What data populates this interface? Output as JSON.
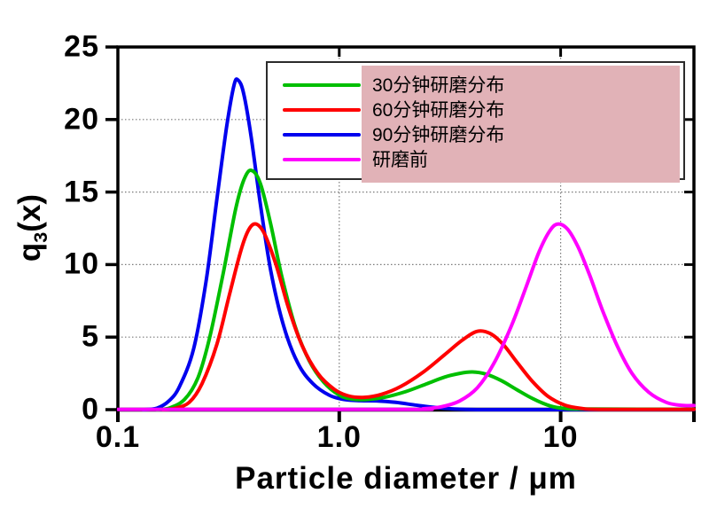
{
  "chart_data": {
    "type": "line",
    "title": "",
    "xlabel": "Particle diameter / μm",
    "ylabel": "q3(x)",
    "ylabel_parts": {
      "main": "q",
      "sub": "3",
      "rest": "(x)"
    },
    "x_scale": "log",
    "xlim": [
      0.1,
      40
    ],
    "ylim": [
      0,
      25
    ],
    "x_ticks": [
      {
        "v": 0.1,
        "label": "0.1"
      },
      {
        "v": 1.0,
        "label": "1.0"
      },
      {
        "v": 10,
        "label": "10"
      }
    ],
    "y_ticks": [
      {
        "v": 0,
        "label": "0"
      },
      {
        "v": 5,
        "label": "5"
      },
      {
        "v": 10,
        "label": "10"
      },
      {
        "v": 15,
        "label": "15"
      },
      {
        "v": 20,
        "label": "20"
      },
      {
        "v": 25,
        "label": "25"
      }
    ],
    "grid": {
      "h_lines": [
        5,
        10,
        15,
        20
      ],
      "v_lines": [
        1,
        10
      ],
      "style": "dotted",
      "color": "#7a7a7a"
    },
    "legend_position": "top-right",
    "series": [
      {
        "key": "grind-90min",
        "name": "90分钟研磨分布",
        "color": "#0000ee",
        "points": [
          [
            0.13,
            0
          ],
          [
            0.15,
            0.1
          ],
          [
            0.17,
            0.6
          ],
          [
            0.19,
            1.6
          ],
          [
            0.22,
            4.2
          ],
          [
            0.25,
            8.8
          ],
          [
            0.28,
            14.5
          ],
          [
            0.31,
            19.5
          ],
          [
            0.335,
            22.4
          ],
          [
            0.35,
            22.7
          ],
          [
            0.37,
            21.8
          ],
          [
            0.4,
            18.8
          ],
          [
            0.44,
            14.2
          ],
          [
            0.49,
            9.6
          ],
          [
            0.56,
            5.8
          ],
          [
            0.65,
            3.2
          ],
          [
            0.76,
            1.8
          ],
          [
            0.9,
            1.0
          ],
          [
            1.05,
            0.7
          ],
          [
            1.25,
            0.62
          ],
          [
            1.5,
            0.6
          ],
          [
            1.8,
            0.5
          ],
          [
            2.2,
            0.32
          ],
          [
            2.7,
            0.15
          ],
          [
            3.3,
            0.05
          ],
          [
            4.2,
            0
          ],
          [
            6,
            0
          ],
          [
            40,
            0
          ]
        ]
      },
      {
        "key": "grind-30min",
        "name": "30分钟研磨分布",
        "color": "#00bf00",
        "points": [
          [
            0.15,
            0
          ],
          [
            0.17,
            0.1
          ],
          [
            0.2,
            0.7
          ],
          [
            0.23,
            2.2
          ],
          [
            0.26,
            5
          ],
          [
            0.3,
            9.5
          ],
          [
            0.34,
            13.8
          ],
          [
            0.37,
            15.8
          ],
          [
            0.4,
            16.5
          ],
          [
            0.44,
            15.6
          ],
          [
            0.49,
            12.8
          ],
          [
            0.55,
            9.2
          ],
          [
            0.63,
            5.8
          ],
          [
            0.73,
            3.4
          ],
          [
            0.85,
            1.9
          ],
          [
            1.0,
            1.0
          ],
          [
            1.15,
            0.72
          ],
          [
            1.35,
            0.7
          ],
          [
            1.6,
            0.85
          ],
          [
            2.0,
            1.25
          ],
          [
            2.5,
            1.8
          ],
          [
            3.0,
            2.25
          ],
          [
            3.5,
            2.5
          ],
          [
            4.0,
            2.6
          ],
          [
            4.6,
            2.45
          ],
          [
            5.4,
            2.0
          ],
          [
            6.3,
            1.4
          ],
          [
            7.5,
            0.75
          ],
          [
            9.0,
            0.25
          ],
          [
            10.5,
            0.08
          ],
          [
            13,
            0.04
          ],
          [
            40,
            0.03
          ]
        ]
      },
      {
        "key": "grind-60min",
        "name": "60分钟研磨分布",
        "color": "#ff0000",
        "points": [
          [
            0.16,
            0
          ],
          [
            0.18,
            0.08
          ],
          [
            0.21,
            0.5
          ],
          [
            0.24,
            1.8
          ],
          [
            0.28,
            4.5
          ],
          [
            0.32,
            8.0
          ],
          [
            0.36,
            11.0
          ],
          [
            0.39,
            12.4
          ],
          [
            0.42,
            12.8
          ],
          [
            0.46,
            12.1
          ],
          [
            0.52,
            9.9
          ],
          [
            0.59,
            7.0
          ],
          [
            0.68,
            4.4
          ],
          [
            0.8,
            2.5
          ],
          [
            0.95,
            1.4
          ],
          [
            1.1,
            0.95
          ],
          [
            1.3,
            0.85
          ],
          [
            1.55,
            1.05
          ],
          [
            1.9,
            1.6
          ],
          [
            2.4,
            2.6
          ],
          [
            3.0,
            3.8
          ],
          [
            3.6,
            4.8
          ],
          [
            4.2,
            5.4
          ],
          [
            4.8,
            5.25
          ],
          [
            5.5,
            4.5
          ],
          [
            6.4,
            3.2
          ],
          [
            7.5,
            1.9
          ],
          [
            8.8,
            0.9
          ],
          [
            10.5,
            0.3
          ],
          [
            12.5,
            0.08
          ],
          [
            15,
            0.02
          ],
          [
            40,
            0.02
          ]
        ]
      },
      {
        "key": "before-grinding",
        "name": "研磨前",
        "color": "#ff00ff",
        "points": [
          [
            0.1,
            0.02
          ],
          [
            2.0,
            0.02
          ],
          [
            2.4,
            0.06
          ],
          [
            2.9,
            0.2
          ],
          [
            3.5,
            0.6
          ],
          [
            4.2,
            1.5
          ],
          [
            5.0,
            3.2
          ],
          [
            6.0,
            5.8
          ],
          [
            7.0,
            8.5
          ],
          [
            8.0,
            10.9
          ],
          [
            9.0,
            12.4
          ],
          [
            9.8,
            12.8
          ],
          [
            10.8,
            12.4
          ],
          [
            12,
            11.2
          ],
          [
            13.5,
            9.3
          ],
          [
            15.5,
            6.8
          ],
          [
            18,
            4.4
          ],
          [
            21,
            2.5
          ],
          [
            25,
            1.2
          ],
          [
            30,
            0.5
          ],
          [
            35,
            0.3
          ],
          [
            40,
            0.28
          ]
        ]
      }
    ]
  },
  "legend": {
    "items": [
      {
        "key": "grind-30min",
        "label": "30分钟研磨分布",
        "color": "#00bf00"
      },
      {
        "key": "grind-60min",
        "label": "60分钟研磨分布",
        "color": "#ff0000"
      },
      {
        "key": "grind-90min",
        "label": "90分钟研磨分布",
        "color": "#0000ee"
      },
      {
        "key": "before-grinding",
        "label": "研磨前",
        "color": "#ff00ff"
      }
    ],
    "highlight_color": "#e1b2b7"
  }
}
